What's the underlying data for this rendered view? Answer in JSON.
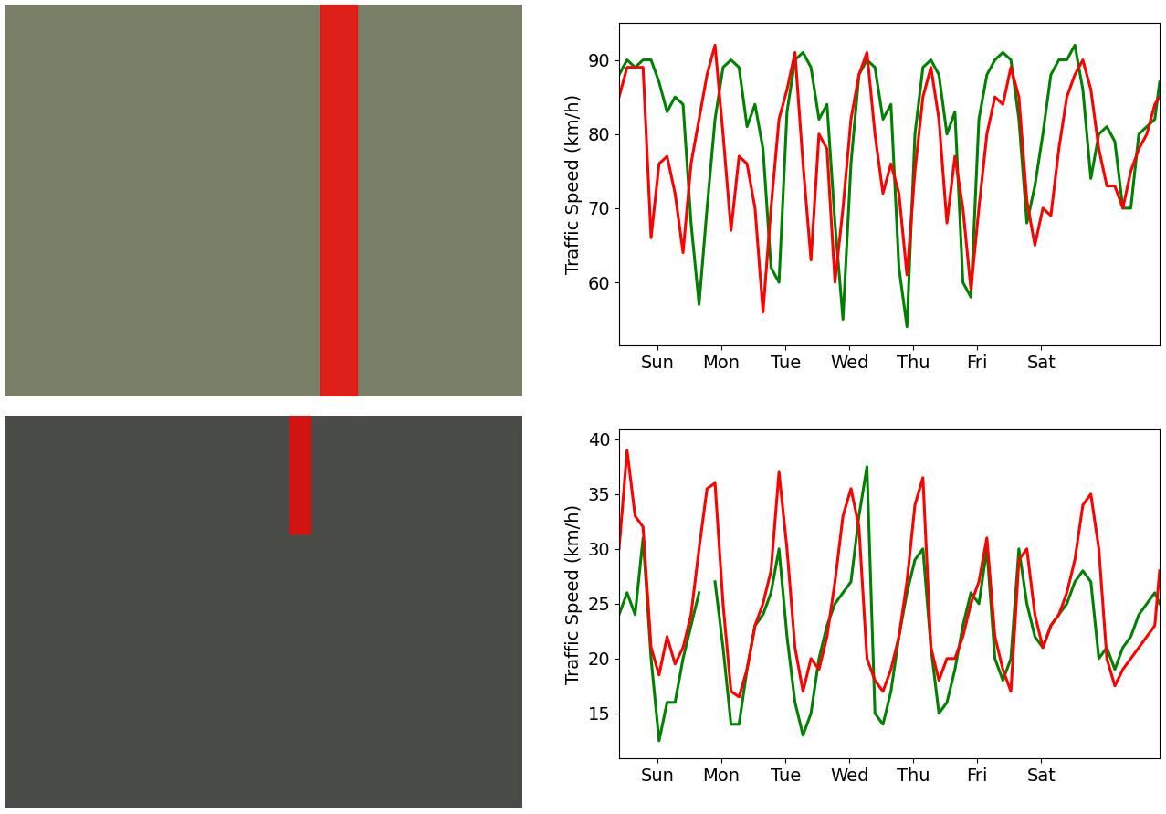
{
  "chart_data": [
    {
      "type": "line",
      "ylabel": "Traffic Speed (km/h)",
      "x": [
        0,
        0.125,
        0.25,
        0.375,
        0.5,
        0.625,
        0.75,
        0.875,
        1.0,
        1.125,
        1.25,
        1.375,
        1.5,
        1.625,
        1.75,
        1.875,
        2.0,
        2.125,
        2.25,
        2.375,
        2.5,
        2.625,
        2.75,
        2.875,
        3.0,
        3.125,
        3.25,
        3.375,
        3.5,
        3.625,
        3.75,
        3.875,
        4.0,
        4.125,
        4.25,
        4.375,
        4.5,
        4.625,
        4.75,
        4.875,
        5.0,
        5.125,
        5.25,
        5.375,
        5.5,
        5.625,
        5.75,
        5.875,
        6.0,
        6.125,
        6.25,
        6.375,
        6.5,
        6.625,
        6.75,
        6.875,
        7.0,
        7.125,
        7.25,
        7.375,
        7.5,
        7.625,
        7.75,
        7.875,
        8.0,
        8.125,
        8.25,
        8.375,
        8.45
      ],
      "series": [
        {
          "color": "green",
          "values": [
            88,
            90,
            89,
            90,
            90,
            87,
            83,
            85,
            84,
            68,
            57,
            70,
            82,
            89,
            90,
            89,
            81,
            84,
            78,
            62,
            60,
            83,
            90,
            91,
            89,
            82,
            84,
            68,
            55,
            76,
            88,
            90,
            89,
            82,
            84,
            62,
            54,
            80,
            89,
            90,
            88,
            80,
            83,
            60,
            58,
            82,
            88,
            90,
            91,
            90,
            82,
            68,
            73,
            80,
            88,
            90,
            90,
            92,
            86,
            74,
            80,
            81,
            79,
            70,
            70,
            80,
            81,
            82,
            87
          ]
        },
        {
          "color": "red",
          "values": [
            85,
            89,
            89,
            89,
            66,
            76,
            77,
            72,
            64,
            76,
            82,
            88,
            92,
            80,
            67,
            77,
            76,
            70,
            56,
            70,
            82,
            86,
            91,
            76,
            63,
            80,
            78,
            60,
            70,
            82,
            88,
            91,
            80,
            72,
            76,
            72,
            61,
            75,
            85,
            89,
            82,
            68,
            77,
            70,
            59,
            70,
            80,
            85,
            84,
            89,
            85,
            71,
            65,
            70,
            69,
            78,
            85,
            88,
            90,
            86,
            78,
            73,
            73,
            70,
            75,
            78,
            80,
            84,
            85
          ]
        }
      ],
      "xlim": [
        0,
        8.45
      ],
      "xticks": [
        {
          "value": 0.6,
          "label": "Sun"
        },
        {
          "value": 1.6,
          "label": "Mon"
        },
        {
          "value": 2.6,
          "label": "Tue"
        },
        {
          "value": 3.6,
          "label": "Wed"
        },
        {
          "value": 4.6,
          "label": "Thu"
        },
        {
          "value": 5.6,
          "label": "Fri"
        },
        {
          "value": 6.6,
          "label": "Sat"
        }
      ],
      "ylim": [
        51.5,
        95
      ],
      "yticks": [
        60,
        70,
        80,
        90
      ]
    },
    {
      "type": "line",
      "ylabel": "Traffic Speed (km/h)",
      "x": [
        0,
        0.125,
        0.25,
        0.375,
        0.5,
        0.625,
        0.75,
        0.875,
        1.0,
        1.125,
        1.25,
        1.375,
        1.5,
        1.625,
        1.75,
        1.875,
        2.0,
        2.125,
        2.25,
        2.375,
        2.5,
        2.625,
        2.75,
        2.875,
        3.0,
        3.125,
        3.25,
        3.375,
        3.5,
        3.625,
        3.75,
        3.875,
        4.0,
        4.125,
        4.25,
        4.375,
        4.5,
        4.625,
        4.75,
        4.875,
        5.0,
        5.125,
        5.25,
        5.375,
        5.5,
        5.625,
        5.75,
        5.875,
        6.0,
        6.125,
        6.25,
        6.375,
        6.5,
        6.625,
        6.75,
        6.875,
        7.0,
        7.125,
        7.25,
        7.375,
        7.5,
        7.625,
        7.75,
        7.875,
        8.0,
        8.125,
        8.25,
        8.375,
        8.45
      ],
      "series": [
        {
          "color": "green",
          "values": [
            24,
            26,
            24,
            31,
            20,
            12.5,
            16,
            16,
            20,
            23,
            26,
            null,
            27,
            21,
            14,
            14,
            19,
            23,
            24,
            26,
            30,
            22,
            16,
            13,
            15,
            20,
            23,
            25,
            26,
            27,
            33,
            37.5,
            15,
            14,
            17,
            22,
            26,
            29,
            30,
            21,
            15,
            16,
            19,
            23,
            26,
            25,
            30,
            20,
            18,
            20,
            30,
            25,
            22,
            21,
            23,
            24,
            25,
            27,
            28,
            27,
            20,
            21,
            19,
            21,
            22,
            24,
            25,
            26,
            25
          ]
        },
        {
          "color": "red",
          "values": [
            30,
            39,
            33,
            32,
            21,
            18.5,
            22,
            19.5,
            21,
            24,
            30,
            35.5,
            36,
            25,
            17,
            16.5,
            19,
            23,
            25,
            28,
            37,
            30,
            21,
            17,
            20,
            19,
            22,
            27,
            33,
            35.5,
            32,
            20,
            18,
            17,
            19,
            22,
            27,
            34,
            36.5,
            21,
            18,
            20,
            20,
            22,
            25,
            27,
            31,
            22,
            19,
            17,
            29,
            30,
            24,
            21,
            23,
            24,
            26,
            29,
            34,
            35,
            30,
            20,
            17.5,
            19,
            20,
            21,
            22,
            23,
            28
          ]
        }
      ],
      "xlim": [
        0,
        8.45
      ],
      "xticks": [
        {
          "value": 0.6,
          "label": "Sun"
        },
        {
          "value": 1.6,
          "label": "Mon"
        },
        {
          "value": 2.6,
          "label": "Tue"
        },
        {
          "value": 3.6,
          "label": "Wed"
        },
        {
          "value": 4.6,
          "label": "Thu"
        },
        {
          "value": 5.6,
          "label": "Fri"
        },
        {
          "value": 6.6,
          "label": "Sat"
        }
      ],
      "ylim": [
        10.9,
        40.9
      ],
      "yticks": [
        15,
        20,
        25,
        30,
        35,
        40
      ]
    }
  ]
}
